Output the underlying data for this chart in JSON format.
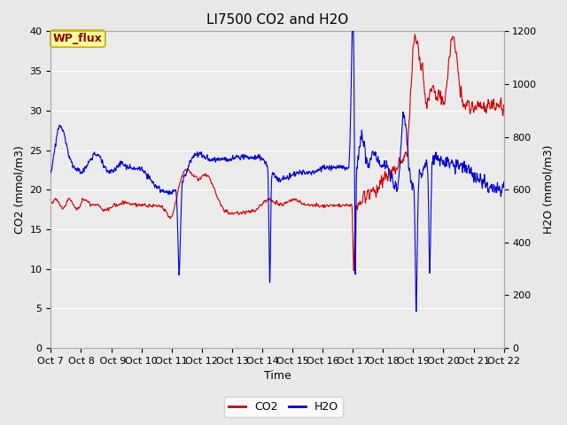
{
  "title": "LI7500 CO2 and H2O",
  "xlabel": "Time",
  "ylabel_left": "CO2 (mmol/m3)",
  "ylabel_right": "H2O (mmol/m3)",
  "ylim_left": [
    0,
    40
  ],
  "ylim_right": [
    0,
    1200
  ],
  "yticks_left": [
    0,
    5,
    10,
    15,
    20,
    25,
    30,
    35,
    40
  ],
  "yticks_right": [
    0,
    200,
    400,
    600,
    800,
    1000,
    1200
  ],
  "xtick_labels": [
    "Oct 7",
    "Oct 8",
    " Oct 9",
    "Oct 10",
    "Oct 11",
    "Oct 12",
    "Oct 13",
    "Oct 14",
    "Oct 15",
    "Oct 16",
    "Oct 17",
    "Oct 18",
    "Oct 19",
    "Oct 20",
    "Oct 21",
    "Oct 22"
  ],
  "co2_color": "#cc0000",
  "h2o_color": "#0000cc",
  "plot_bg_color": "#ebebeb",
  "fig_bg_color": "#e8e8e8",
  "annotation_text": "WP_flux",
  "annotation_bg": "#ffff99",
  "annotation_border": "#ccaa00",
  "legend_co2": "CO2",
  "legend_h2o": "H2O",
  "grid_color": "#ffffff",
  "title_fontsize": 11,
  "axis_fontsize": 9,
  "tick_fontsize": 8,
  "line_width": 0.8
}
